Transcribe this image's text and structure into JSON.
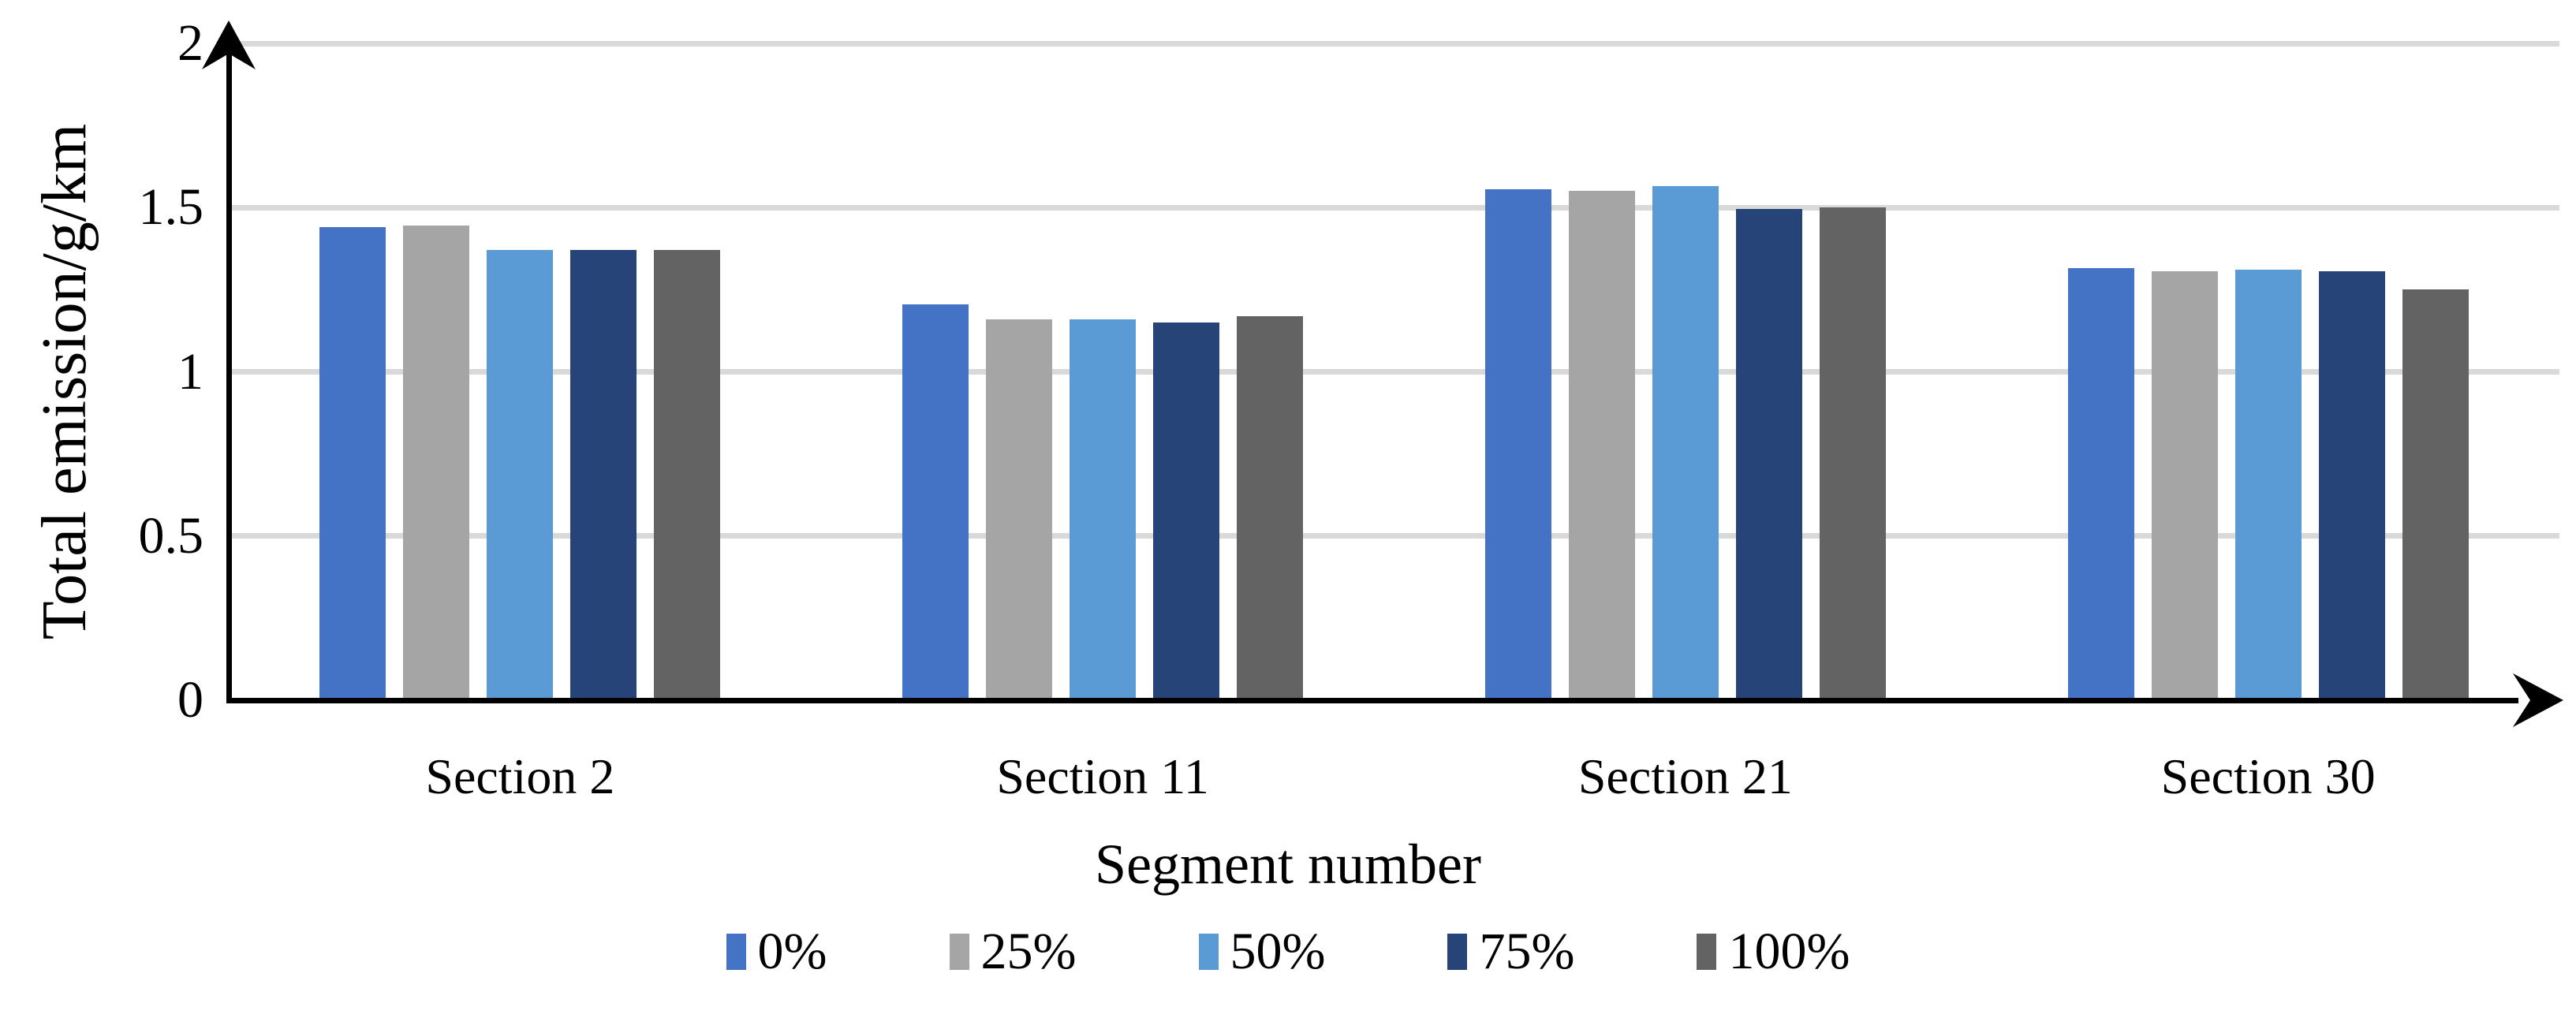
{
  "chart_data": {
    "type": "bar",
    "title": "",
    "xlabel": "Segment number",
    "ylabel": "Total emission/g/km",
    "categories": [
      "Section 2",
      "Section 11",
      "Section 21",
      "Section 30"
    ],
    "series": [
      {
        "name": "0%",
        "color": "#4472C4",
        "values": [
          1.44,
          1.205,
          1.555,
          1.315
        ]
      },
      {
        "name": "25%",
        "color": "#A5A5A5",
        "values": [
          1.445,
          1.16,
          1.55,
          1.305
        ]
      },
      {
        "name": "50%",
        "color": "#5B9BD5",
        "values": [
          1.37,
          1.16,
          1.565,
          1.31
        ]
      },
      {
        "name": "75%",
        "color": "#264478",
        "values": [
          1.37,
          1.15,
          1.495,
          1.305
        ]
      },
      {
        "name": "100%",
        "color": "#636363",
        "values": [
          1.37,
          1.17,
          1.5,
          1.25
        ]
      }
    ],
    "ylim": [
      0,
      2
    ],
    "yticks": [
      {
        "value": 0,
        "label": "0"
      },
      {
        "value": 0.5,
        "label": "0.5"
      },
      {
        "value": 1,
        "label": "1"
      },
      {
        "value": 1.5,
        "label": "1.5"
      },
      {
        "value": 2,
        "label": "2"
      }
    ],
    "grid": true,
    "legend_position": "bottom",
    "axis_color": "#000000",
    "gridline_color": "#D9D9D9",
    "background_color": "#FFFFFF"
  }
}
